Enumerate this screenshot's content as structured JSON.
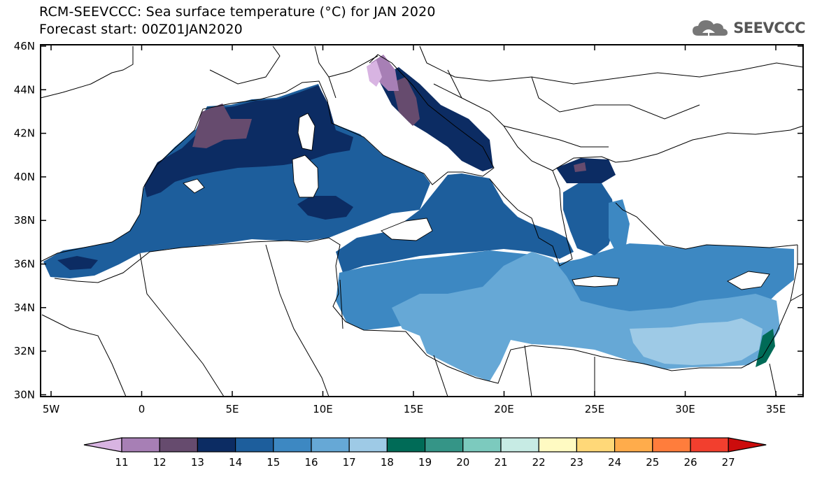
{
  "header": {
    "title_line1": "RCM-SEEVCCC: Sea surface temperature (°C) for JAN 2020",
    "title_line2": "Forecast start: 00Z01JAN2020",
    "logo_text": "SEEVCCC",
    "logo_icon": "cloud-umbrella-icon"
  },
  "map": {
    "region": "Mediterranean Sea",
    "lon_range": [
      -5.5,
      36.5
    ],
    "lat_range": [
      29.8,
      46
    ],
    "lat_ticks": [
      "46N",
      "44N",
      "42N",
      "40N",
      "38N",
      "36N",
      "34N",
      "32N",
      "30N"
    ],
    "lon_ticks": [
      "5W",
      "0",
      "5E",
      "10E",
      "15E",
      "20E",
      "25E",
      "30E",
      "35E"
    ]
  },
  "colorbar": {
    "labels": [
      "11",
      "12",
      "13",
      "14",
      "15",
      "16",
      "17",
      "18",
      "19",
      "20",
      "21",
      "22",
      "23",
      "24",
      "25",
      "26",
      "27"
    ],
    "colors": [
      "#d8b4e2",
      "#a77fb5",
      "#664b6e",
      "#0c2c63",
      "#1d5e9c",
      "#3d88c2",
      "#66a8d6",
      "#9ecae6",
      "#006b57",
      "#359587",
      "#7ccabe",
      "#c7ebe4",
      "#fffac2",
      "#ffd878",
      "#ffac4b",
      "#ff7d3c",
      "#f23f2e",
      "#cc0c0c"
    ]
  }
}
